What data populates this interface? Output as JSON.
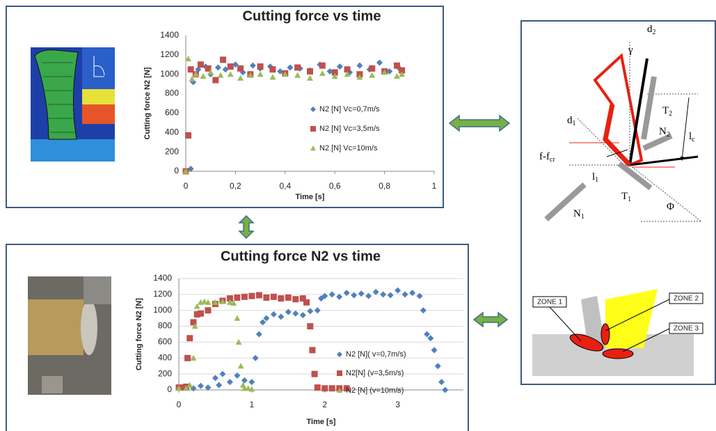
{
  "chart_data": [
    {
      "type": "scatter",
      "title": "Cutting force vs time",
      "x_label": "Time [s]",
      "y_label": "Cutting force N2 [N]",
      "xlim": [
        0,
        1
      ],
      "ylim": [
        0,
        1400
      ],
      "xticks": [
        0,
        {
          "value": 0.2,
          "label": "0,2"
        },
        {
          "value": 0.4,
          "label": "0,4"
        },
        {
          "value": 0.6,
          "label": "0,6"
        },
        {
          "value": 0.8,
          "label": "0,8"
        },
        1
      ],
      "yticks": [
        0,
        200,
        400,
        600,
        800,
        1000,
        1200,
        1400
      ],
      "grid": false,
      "legend": "right",
      "series": [
        {
          "name": "N2 [N] Vc=0,7m/s",
          "color": "#4f81bd",
          "marker": "diamond",
          "x": [
            0,
            0.02,
            0.03,
            0.05,
            0.08,
            0.1,
            0.13,
            0.16,
            0.2,
            0.23,
            0.27,
            0.3,
            0.34,
            0.38,
            0.42,
            0.46,
            0.5,
            0.54,
            0.58,
            0.62,
            0.66,
            0.7,
            0.74,
            0.78,
            0.82,
            0.86
          ],
          "values": [
            0,
            25,
            920,
            1050,
            1080,
            1000,
            1070,
            1050,
            1100,
            1020,
            1090,
            1060,
            1080,
            1030,
            1070,
            1060,
            1040,
            1100,
            1030,
            1080,
            1020,
            1090,
            1050,
            1120,
            1030,
            1060
          ]
        },
        {
          "name": "N2 [N] Vc=3,5m/s",
          "color": "#c0504d",
          "marker": "square",
          "x": [
            0,
            0.01,
            0.02,
            0.04,
            0.06,
            0.09,
            0.12,
            0.15,
            0.18,
            0.22,
            0.26,
            0.3,
            0.35,
            0.4,
            0.45,
            0.5,
            0.55,
            0.6,
            0.65,
            0.7,
            0.75,
            0.8,
            0.85,
            0.87
          ],
          "values": [
            0,
            370,
            1050,
            1000,
            1100,
            1060,
            940,
            1150,
            1080,
            1060,
            1000,
            1080,
            1050,
            1010,
            1070,
            1030,
            1090,
            1020,
            1050,
            1000,
            1060,
            1030,
            1090,
            1040
          ]
        },
        {
          "name": "N2 [N] Vc=10m/s",
          "color": "#9bbb59",
          "marker": "triangle",
          "x": [
            0,
            0.01,
            0.025,
            0.04,
            0.07,
            0.1,
            0.14,
            0.18,
            0.22,
            0.26,
            0.3,
            0.35,
            0.4,
            0.45,
            0.5,
            0.55,
            0.6,
            0.65,
            0.7,
            0.75,
            0.8,
            0.85,
            0.87
          ],
          "values": [
            0,
            1160,
            950,
            1000,
            980,
            1020,
            990,
            1000,
            960,
            990,
            1000,
            970,
            1000,
            990,
            960,
            1010,
            980,
            1000,
            970,
            990,
            1020,
            980,
            1000
          ]
        }
      ]
    },
    {
      "type": "scatter",
      "title": "Cutting force N2 vs time",
      "x_label": "Time [s]",
      "y_label": "Cutting force N2 [N]",
      "xlim": [
        0,
        3.9
      ],
      "ylim": [
        0,
        1400
      ],
      "xticks": [
        0,
        1,
        2,
        3
      ],
      "yticks": [
        0,
        200,
        400,
        600,
        800,
        1000,
        1200,
        1400
      ],
      "grid": true,
      "legend": "right",
      "series": [
        {
          "name": "N2 [N]( v=0,7m/s)",
          "color": "#4f81bd",
          "marker": "diamond",
          "x": [
            0,
            0.1,
            0.2,
            0.3,
            0.4,
            0.5,
            0.55,
            0.6,
            0.7,
            0.8,
            0.9,
            1.0,
            1.05,
            1.1,
            1.15,
            1.2,
            1.3,
            1.4,
            1.5,
            1.6,
            1.7,
            1.8,
            1.9,
            1.95,
            2.0,
            2.1,
            2.2,
            2.3,
            2.4,
            2.5,
            2.6,
            2.7,
            2.8,
            2.9,
            3.0,
            3.1,
            3.2,
            3.3,
            3.35,
            3.4,
            3.45,
            3.5,
            3.55,
            3.6,
            3.65
          ],
          "values": [
            30,
            40,
            20,
            50,
            30,
            150,
            60,
            200,
            100,
            180,
            120,
            100,
            400,
            700,
            850,
            900,
            950,
            920,
            980,
            960,
            940,
            990,
            1000,
            1150,
            1180,
            1200,
            1170,
            1220,
            1190,
            1210,
            1180,
            1230,
            1200,
            1190,
            1250,
            1200,
            1220,
            1180,
            1000,
            700,
            650,
            500,
            300,
            100,
            0
          ]
        },
        {
          "name": "N2[N] (v=3,5m/s)",
          "color": "#c0504d",
          "marker": "square",
          "x": [
            0,
            0.05,
            0.1,
            0.12,
            0.15,
            0.2,
            0.25,
            0.3,
            0.4,
            0.5,
            0.6,
            0.7,
            0.8,
            0.9,
            1.0,
            1.1,
            1.2,
            1.3,
            1.4,
            1.5,
            1.6,
            1.7,
            1.75,
            1.8,
            1.83,
            1.86,
            1.9,
            2.0,
            2.1,
            2.2,
            2.3
          ],
          "values": [
            30,
            30,
            40,
            400,
            650,
            850,
            950,
            960,
            1000,
            1080,
            1120,
            1150,
            1160,
            1170,
            1180,
            1190,
            1160,
            1170,
            1150,
            1160,
            1140,
            1150,
            1100,
            800,
            500,
            200,
            30,
            20,
            20,
            20,
            20
          ]
        },
        {
          "name": "N2 [N] (v=10m/s)",
          "color": "#9bbb59",
          "marker": "triangle",
          "x": [
            0,
            0.1,
            0.15,
            0.2,
            0.22,
            0.25,
            0.3,
            0.35,
            0.4,
            0.5,
            0.6,
            0.7,
            0.75,
            0.8,
            0.82,
            0.85,
            0.88,
            0.9,
            0.95,
            1.0
          ],
          "values": [
            20,
            20,
            60,
            400,
            800,
            1050,
            1100,
            1110,
            1100,
            1100,
            1110,
            1100,
            1090,
            900,
            600,
            300,
            60,
            20,
            20,
            10
          ]
        }
      ]
    }
  ],
  "diagram": {
    "labels": [
      {
        "main": "d",
        "sub": "2"
      },
      {
        "main": "γ"
      },
      {
        "main": "T",
        "sub": "2"
      },
      {
        "main": "N",
        "sub": "2"
      },
      {
        "main": "l",
        "sub": "c"
      },
      {
        "main": "d",
        "sub": "1"
      },
      {
        "main": "f-f",
        "sub": "cr"
      },
      {
        "main": "l",
        "sub": "1"
      },
      {
        "main": "T",
        "sub": "1"
      },
      {
        "main": "N",
        "sub": "1"
      },
      {
        "main": "Φ"
      }
    ],
    "zones": [
      "ZONE 1",
      "ZONE 2",
      "ZONE 3"
    ]
  }
}
